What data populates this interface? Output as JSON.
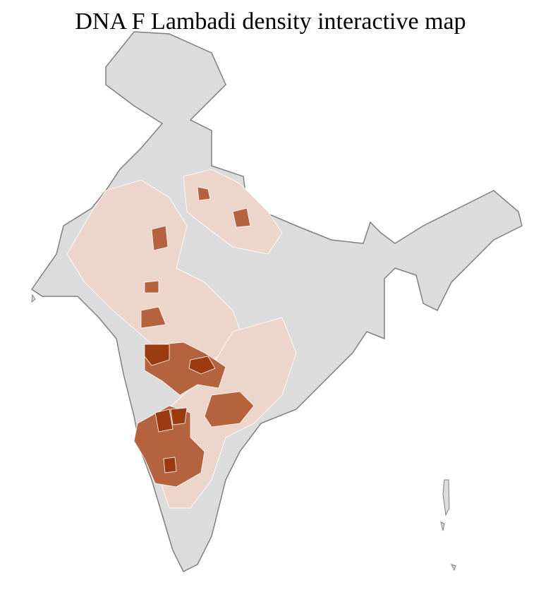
{
  "title": "DNA F Lambadi density interactive map",
  "colors": {
    "no_data": "#dcdcdc",
    "low": "#ecd6cc",
    "medium": "#b5633f",
    "high": "#9a3a0e",
    "border": "#7f7f7f",
    "district_border": "#ffffff"
  },
  "legend": null
}
